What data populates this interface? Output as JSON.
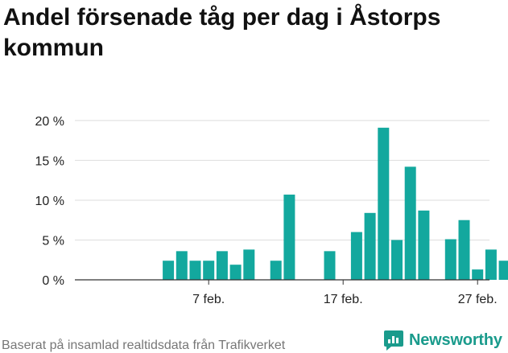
{
  "title": "Andel försenade tåg per dag i Åstorps kommun",
  "footer": "Baserat på insamlad realtidsdata från Trafikverket",
  "brand": {
    "name": "Newsworthy",
    "color": "#1a9b8c"
  },
  "colors": {
    "bar": "#13a89e",
    "grid": "#dddddd",
    "axis": "#333333",
    "text": "#222222"
  },
  "chart_data": {
    "type": "bar",
    "title": "Andel försenade tåg per dag i Åstorps kommun",
    "xlabel": "",
    "ylabel": "",
    "ylim": [
      0,
      21
    ],
    "grid": true,
    "y_ticks": [
      0,
      5,
      10,
      15,
      20
    ],
    "y_tick_labels": [
      "0 %",
      "5 %",
      "10 %",
      "15 %",
      "20 %"
    ],
    "x_tick_labels": [
      {
        "day": 7,
        "label": "7 feb."
      },
      {
        "day": 17,
        "label": "17 feb."
      },
      {
        "day": 27,
        "label": "27 feb."
      }
    ],
    "x_range": [
      0,
      30
    ],
    "days": [
      1,
      2,
      3,
      4,
      5,
      6,
      7,
      8,
      9,
      10,
      11,
      12,
      13,
      14,
      15,
      16,
      17,
      18,
      19,
      20,
      21,
      22,
      23,
      24,
      25,
      26,
      27,
      28,
      29,
      30
    ],
    "values": [
      null,
      null,
      null,
      2.4,
      3.6,
      2.4,
      2.4,
      3.6,
      1.9,
      3.8,
      null,
      2.4,
      10.7,
      null,
      null,
      3.6,
      null,
      6.0,
      8.4,
      19.1,
      5.0,
      14.2,
      8.7,
      null,
      5.1,
      7.5,
      1.3,
      3.8,
      2.4,
      null
    ]
  }
}
